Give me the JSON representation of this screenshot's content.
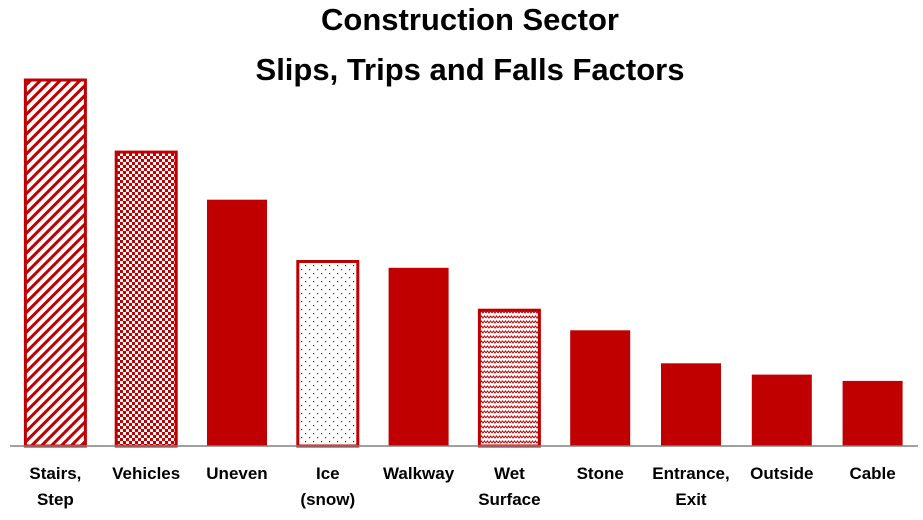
{
  "chart_data": {
    "type": "bar",
    "title": [
      "Construction Sector",
      "Slips, Trips and Falls Factors"
    ],
    "xlabel": "",
    "ylabel": "",
    "categories": [
      [
        "Stairs,",
        "Step"
      ],
      [
        "Vehicles"
      ],
      [
        "Uneven"
      ],
      [
        "Ice",
        "(snow)"
      ],
      [
        "Walkway"
      ],
      [
        "Wet",
        "Surface"
      ],
      [
        "Stone"
      ],
      [
        "Entrance,",
        "Exit"
      ],
      [
        "Outside"
      ],
      [
        "Cable"
      ]
    ],
    "values": [
      100,
      80.3,
      67.3,
      50.4,
      48.7,
      37.1,
      31.6,
      22.6,
      19.5,
      17.8
    ],
    "patterns": [
      "diagonal-stripes",
      "checker",
      "solid",
      "dots",
      "solid",
      "zigzag",
      "solid",
      "solid",
      "solid",
      "solid"
    ],
    "ylim": [
      0,
      100
    ],
    "grid": false,
    "legend": "none",
    "colors": {
      "bar": "#c00000",
      "axis": "#808080",
      "text": "#000000"
    }
  }
}
